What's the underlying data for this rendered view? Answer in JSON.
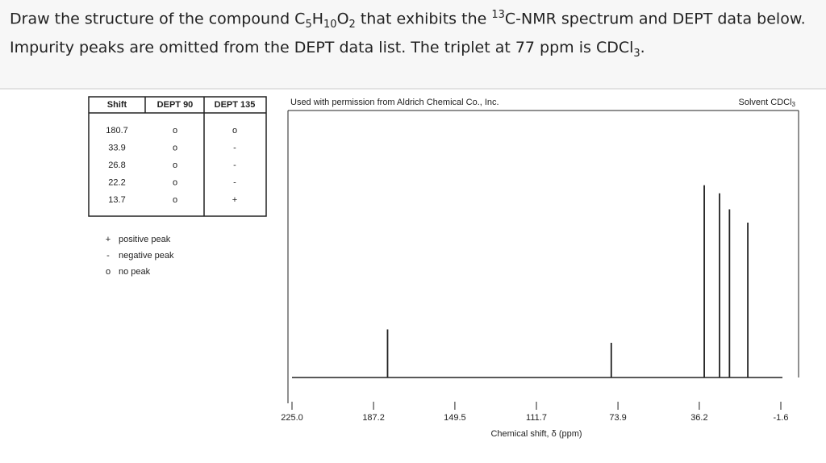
{
  "question": {
    "parts": [
      "Draw the structure of the compound C",
      "5",
      "H",
      "10",
      "O",
      "2",
      " that exhibits the ",
      "13",
      "C-NMR spectrum and DEPT data below. Impurity peaks are omitted from the DEPT data list. The triplet at 77 ppm is CDCl",
      "3",
      "."
    ]
  },
  "table": {
    "header": [
      "Shift",
      "DEPT 90",
      "DEPT 135"
    ],
    "rows": [
      [
        "180.7",
        "o",
        "o"
      ],
      [
        "33.9",
        "o",
        "-"
      ],
      [
        "26.8",
        "o",
        "-"
      ],
      [
        "22.2",
        "o",
        "-"
      ],
      [
        "13.7",
        "o",
        "+"
      ]
    ]
  },
  "legend": [
    {
      "symbol": "+",
      "text": "positive peak"
    },
    {
      "symbol": "-",
      "text": "negative peak"
    },
    {
      "symbol": "o",
      "text": "no peak"
    }
  ],
  "spectrum": {
    "credit": "Used with permission from Aldrich Chemical Co., Inc.",
    "solvent": [
      "Solvent CDCl",
      "3"
    ],
    "xlabel": "Chemical shift, δ (ppm)",
    "xlim": [
      225.0,
      -1.6
    ],
    "xticks": [
      {
        "value": 225.0,
        "label": "225.0"
      },
      187.2,
      149.5,
      111.7,
      73.9,
      36.2,
      -1.6
    ],
    "ylim": [
      0,
      100
    ],
    "peaks": {
      "x": [
        180.7,
        77,
        33.9,
        26.8,
        22.2,
        13.7
      ],
      "intensity": [
        18,
        13,
        72,
        69,
        63,
        58
      ]
    }
  }
}
